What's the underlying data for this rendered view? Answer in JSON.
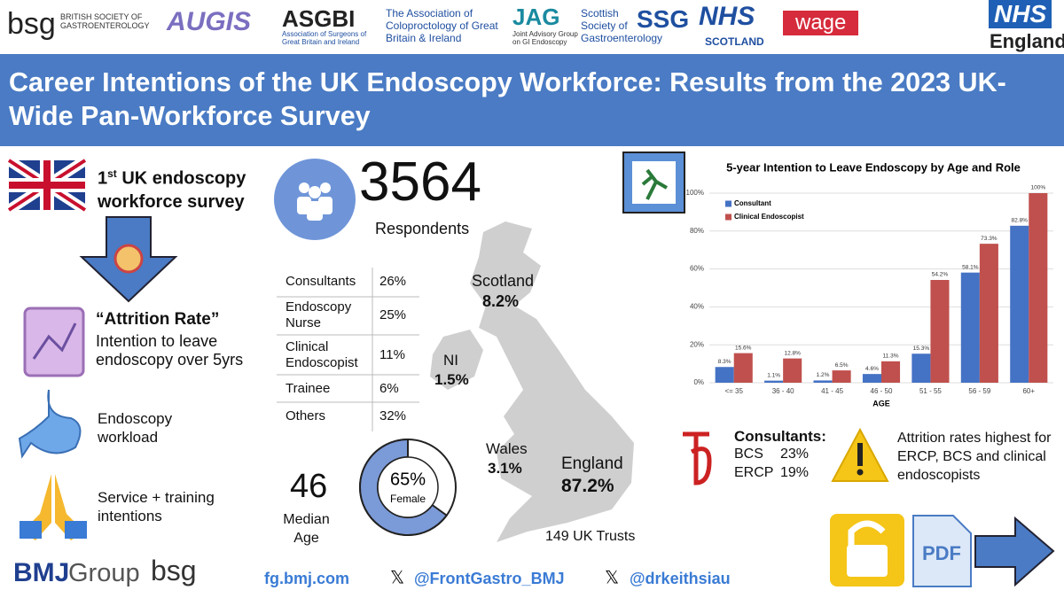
{
  "logos": [
    "bsg",
    "BRITISH SOCIETY OF GASTROENTEROLOGY",
    "AUGIS",
    "ASGBI",
    "Association of Surgeons of Great Britain and Ireland",
    "The Association of Coloproctology of Great Britain & Ireland",
    "JAG",
    "Joint Advisory Group on GI Endoscopy",
    "Scottish Society of Gastroenterology",
    "SSG",
    "NHS",
    "SCOTLAND",
    "wage",
    "NHS",
    "England"
  ],
  "title": "Career Intentions of the UK Endoscopy Workforce: Results from the 2023 UK-Wide Pan-Workforce Survey",
  "intro": {
    "num": "1",
    "sup": "st",
    "text": " UK endoscopy workforce survey"
  },
  "attrition": {
    "title": "“Attrition Rate”",
    "text": "Intention to leave endoscopy over 5yrs"
  },
  "workload": "Endoscopy workload",
  "intentions": "Service + training intentions",
  "respondents": {
    "count": "3564",
    "label": "Respondents"
  },
  "roles": {
    "rows": [
      [
        "Consultants",
        "26%"
      ],
      [
        "Endoscopy Nurse",
        "25%"
      ],
      [
        "Clinical Endoscopist",
        "11%"
      ],
      [
        "Trainee",
        "6%"
      ],
      [
        "Others",
        "32%"
      ]
    ]
  },
  "regions": [
    {
      "name": "Scotland",
      "share": "8.2%"
    },
    {
      "name": "NI",
      "share": "1.5%"
    },
    {
      "name": "Wales",
      "share": "3.1%"
    },
    {
      "name": "England",
      "share": "87.2%"
    }
  ],
  "trusts": "149 UK Trusts",
  "age": {
    "value": "46",
    "label": "Median Age"
  },
  "consultants": {
    "title": "Consultants:",
    "rows": [
      [
        "BCS",
        "23%"
      ],
      [
        "ERCP",
        "19%"
      ]
    ]
  },
  "attrition_note": "Attrition rates highest for ERCP, BCS and clinical endoscopists",
  "pdf": "PDF",
  "footer": {
    "bmj": "BMJ",
    "group": "Group",
    "bsg": "bsg",
    "links": [
      "fg.bmj.com",
      "@FrontGastro_BMJ",
      "@drkeithsiau"
    ]
  },
  "chart_data": [
    {
      "type": "bar",
      "title": "5-year Intention to Leave Endoscopy by Age and Role",
      "x_label": "AGE",
      "categories": [
        "<= 35",
        "36 - 40",
        "41 - 45",
        "46 - 50",
        "51 - 55",
        "56 - 59",
        "60+"
      ],
      "series": [
        {
          "name": "Consultant",
          "color": "#4472c4",
          "values": [
            8.3,
            1.1,
            1.2,
            4.6,
            15.3,
            58.1,
            82.8
          ],
          "value_labels": [
            "8.3%",
            "1.1%",
            "1.2%",
            "4.6%",
            "15.3%",
            "58.1%",
            "82.8%"
          ]
        },
        {
          "name": "Clinical Endoscopist",
          "color": "#c0504d",
          "values": [
            15.6,
            12.8,
            6.5,
            11.3,
            54.2,
            73.3,
            100
          ],
          "value_labels": [
            "15.6%",
            "12.8%",
            "6.5%",
            "11.3%",
            "54.2%",
            "73.3%",
            "100%"
          ]
        }
      ],
      "ylim": [
        0,
        100
      ],
      "yticks": [
        {
          "value": 0,
          "label": "0%"
        },
        {
          "value": 20,
          "label": "20%"
        },
        {
          "value": 40,
          "label": "40%"
        },
        {
          "value": 60,
          "label": "60%"
        },
        {
          "value": 80,
          "label": "80%"
        },
        {
          "value": 100,
          "label": "100%"
        }
      ],
      "grid": true,
      "legend": "upper left"
    },
    {
      "type": "donut",
      "label": "Female",
      "values": [
        65
      ],
      "value_labels": [
        "65%"
      ],
      "color": "#7b9ad8"
    }
  ]
}
